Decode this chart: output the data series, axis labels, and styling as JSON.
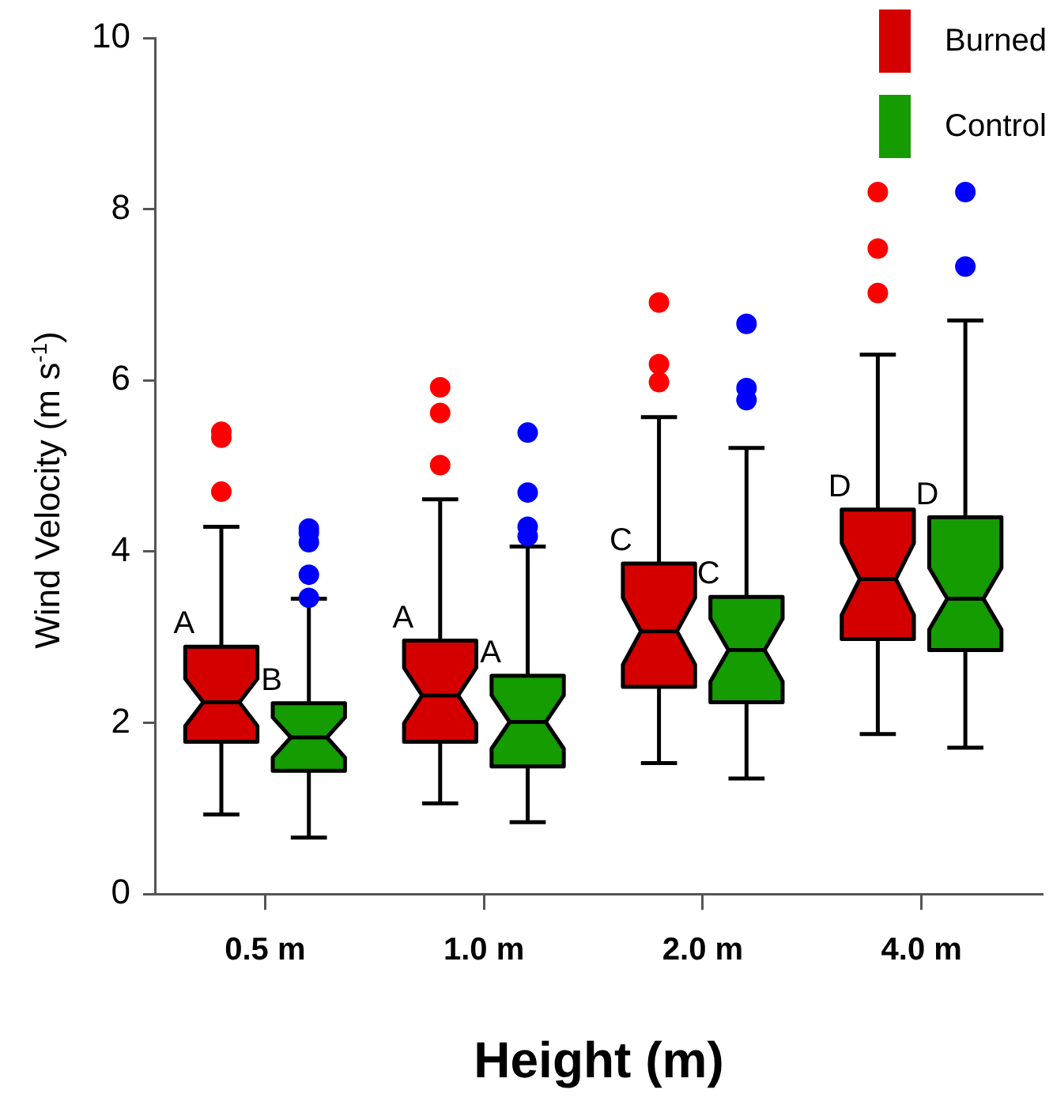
{
  "chart_data": {
    "type": "box",
    "xlabel": "Height (m)",
    "ylabel": "Wind Velocity (m s$^{-1}$)",
    "categories": [
      "0.5 m",
      "1.0 m",
      "2.0 m",
      "4.0 m"
    ],
    "ylim": [
      0,
      10
    ],
    "yticks": [
      0,
      2,
      4,
      6,
      8,
      10
    ],
    "grid": false,
    "legend": "top right",
    "series": [
      {
        "name": "Burned",
        "color": "#d40000",
        "boxes": [
          {
            "low": 0.93,
            "q1": 1.78,
            "median": 2.24,
            "q3": 2.89,
            "high": 4.29
          },
          {
            "low": 1.06,
            "q1": 1.78,
            "median": 2.32,
            "q3": 2.96,
            "high": 4.61
          },
          {
            "low": 1.53,
            "q1": 2.42,
            "median": 3.07,
            "q3": 3.86,
            "high": 5.57
          },
          {
            "low": 1.87,
            "q1": 2.98,
            "median": 3.68,
            "q3": 4.49,
            "high": 6.3
          }
        ]
      },
      {
        "name": "Control",
        "color": "#149c00",
        "boxes": [
          {
            "low": 0.66,
            "q1": 1.44,
            "median": 1.83,
            "q3": 2.23,
            "high": 3.45
          },
          {
            "low": 0.84,
            "q1": 1.49,
            "median": 2.01,
            "q3": 2.55,
            "high": 4.06
          },
          {
            "low": 1.35,
            "q1": 2.24,
            "median": 2.85,
            "q3": 3.47,
            "high": 5.21
          },
          {
            "low": 1.71,
            "q1": 2.85,
            "median": 3.45,
            "q3": 4.4,
            "high": 6.7
          }
        ]
      },
      {
        "type": "scatter",
        "color": "#ff0000",
        "x": [
          "0.5 m",
          "0.5 m",
          "0.5 m",
          "1.0 m",
          "1.0 m",
          "1.0 m",
          "2.0 m",
          "2.0 m",
          "2.0 m",
          "4.0 m",
          "4.0 m",
          "4.0 m"
        ],
        "values": [
          5.4,
          5.33,
          4.7,
          5.92,
          5.62,
          5.01,
          6.91,
          6.19,
          5.98,
          8.2,
          7.54,
          7.02
        ]
      },
      {
        "type": "scatter",
        "color": "#0000ff",
        "x": [
          "0.5 m",
          "0.5 m",
          "0.5 m",
          "0.5 m",
          "0.5 m",
          "1.0 m",
          "1.0 m",
          "1.0 m",
          "1.0 m",
          "2.0 m",
          "2.0 m",
          "2.0 m",
          "4.0 m",
          "4.0 m"
        ],
        "values": [
          4.27,
          4.22,
          4.11,
          3.73,
          3.46,
          5.39,
          4.69,
          4.29,
          4.18,
          6.66,
          5.91,
          5.77,
          8.2,
          7.33
        ]
      }
    ],
    "annotations": [
      "A",
      "B",
      "A",
      "A",
      "C",
      "C",
      "D",
      "D"
    ]
  }
}
